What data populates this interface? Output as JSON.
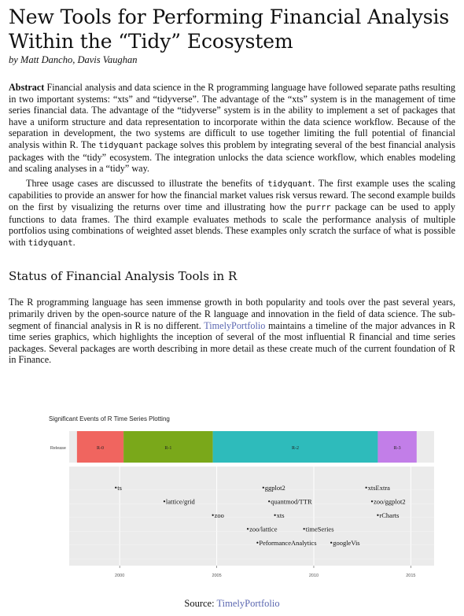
{
  "title": "New Tools for Performing Financial Analysis Within the “Tidy” Ecosystem",
  "authors": "by Matt Dancho, Davis Vaughan",
  "abstract": {
    "label": "Abstract",
    "p1": " Financial analysis and data science in the R programming language have followed separate paths resulting in two important systems: “xts” and “tidyverse”. The advantage of the “xts” system is in the management of time series financial data. The advantage of the “tidyverse” system is in the ability to implement a set of packages that have a uniform structure and data representation to incorporate within the data science workflow. Because of the separation in development, the two systems are difficult to use together limiting the full potential of financial analysis within R. The ",
    "pkg1": "tidyquant",
    "p2": " package solves this problem by integrating several of the best financial analysis packages with the “tidy” ecosystem. The integration unlocks the data science workflow, which enables modeling and scaling analyses in a “tidy” way."
  },
  "intro2": {
    "a": "Three usage cases are discussed to illustrate the benefits of ",
    "pkg1": "tidyquant",
    "b": ". The first example uses the scaling capabilities to provide an answer for how the financial market values risk versus reward. The second example builds on the first by visualizing the returns over time and illustrating how the ",
    "pkg2": "purrr",
    "c": " package can be used to apply functions to data frames. The third example evaluates methods to scale the performance analysis of multiple portfolios using combinations of weighted asset blends. These examples only scratch the surface of what is possible with ",
    "pkg3": "tidyquant",
    "d": "."
  },
  "section1": {
    "heading": "Status of Financial Analysis Tools in R",
    "a": "The R programming language has seen immense growth in both popularity and tools over the past several years, primarily driven by the open-source nature of the R language and innovation in the field of data science. The sub-segment of financial analysis in R is no different. ",
    "link": "TimelyPortfolio",
    "b": " maintains a timeline of the major advances in R time series graphics, which highlights the inception of several of the most influential R financial and time series packages. Several packages are worth describing in more detail as these create much of the current foundation of R in Finance."
  },
  "chart_data": {
    "type": "timeline",
    "title": "Significant Events of R Time Series Plotting",
    "xlim": [
      1997.4,
      2016.2
    ],
    "x_ticks": [
      2000,
      2005,
      2010,
      2015
    ],
    "release_label": "Release",
    "releases": [
      {
        "name": "R-0",
        "start": 1997.8,
        "end": 2000.2,
        "color": "#f0655f"
      },
      {
        "name": "R-1",
        "start": 2000.2,
        "end": 2004.8,
        "color": "#7aa81a"
      },
      {
        "name": "R-2",
        "start": 2004.8,
        "end": 2013.3,
        "color": "#2ebbbb"
      },
      {
        "name": "R-3",
        "start": 2013.3,
        "end": 2015.3,
        "color": "#c27ee8"
      }
    ],
    "events": [
      {
        "label": "ts",
        "x": 1999.8,
        "y": 6
      },
      {
        "label": "ggplot2",
        "x": 2007.4,
        "y": 6
      },
      {
        "label": "xtsExtra",
        "x": 2012.7,
        "y": 6
      },
      {
        "label": "lattice/grid",
        "x": 2002.3,
        "y": 5
      },
      {
        "label": "quantmod/TTR",
        "x": 2007.7,
        "y": 5
      },
      {
        "label": "zoo/ggplot2",
        "x": 2013.0,
        "y": 5
      },
      {
        "label": "zoo",
        "x": 2004.8,
        "y": 4
      },
      {
        "label": "xts",
        "x": 2008.0,
        "y": 4
      },
      {
        "label": "rCharts",
        "x": 2013.3,
        "y": 4
      },
      {
        "label": "zoo/lattice",
        "x": 2006.6,
        "y": 3
      },
      {
        "label": "timeSeries",
        "x": 2009.5,
        "y": 3
      },
      {
        "label": "PeformanceAnalytics",
        "x": 2007.1,
        "y": 2
      },
      {
        "label": "googleVis",
        "x": 2010.9,
        "y": 2
      }
    ]
  },
  "source": {
    "label": "Source: ",
    "link": "TimelyPortfolio"
  }
}
